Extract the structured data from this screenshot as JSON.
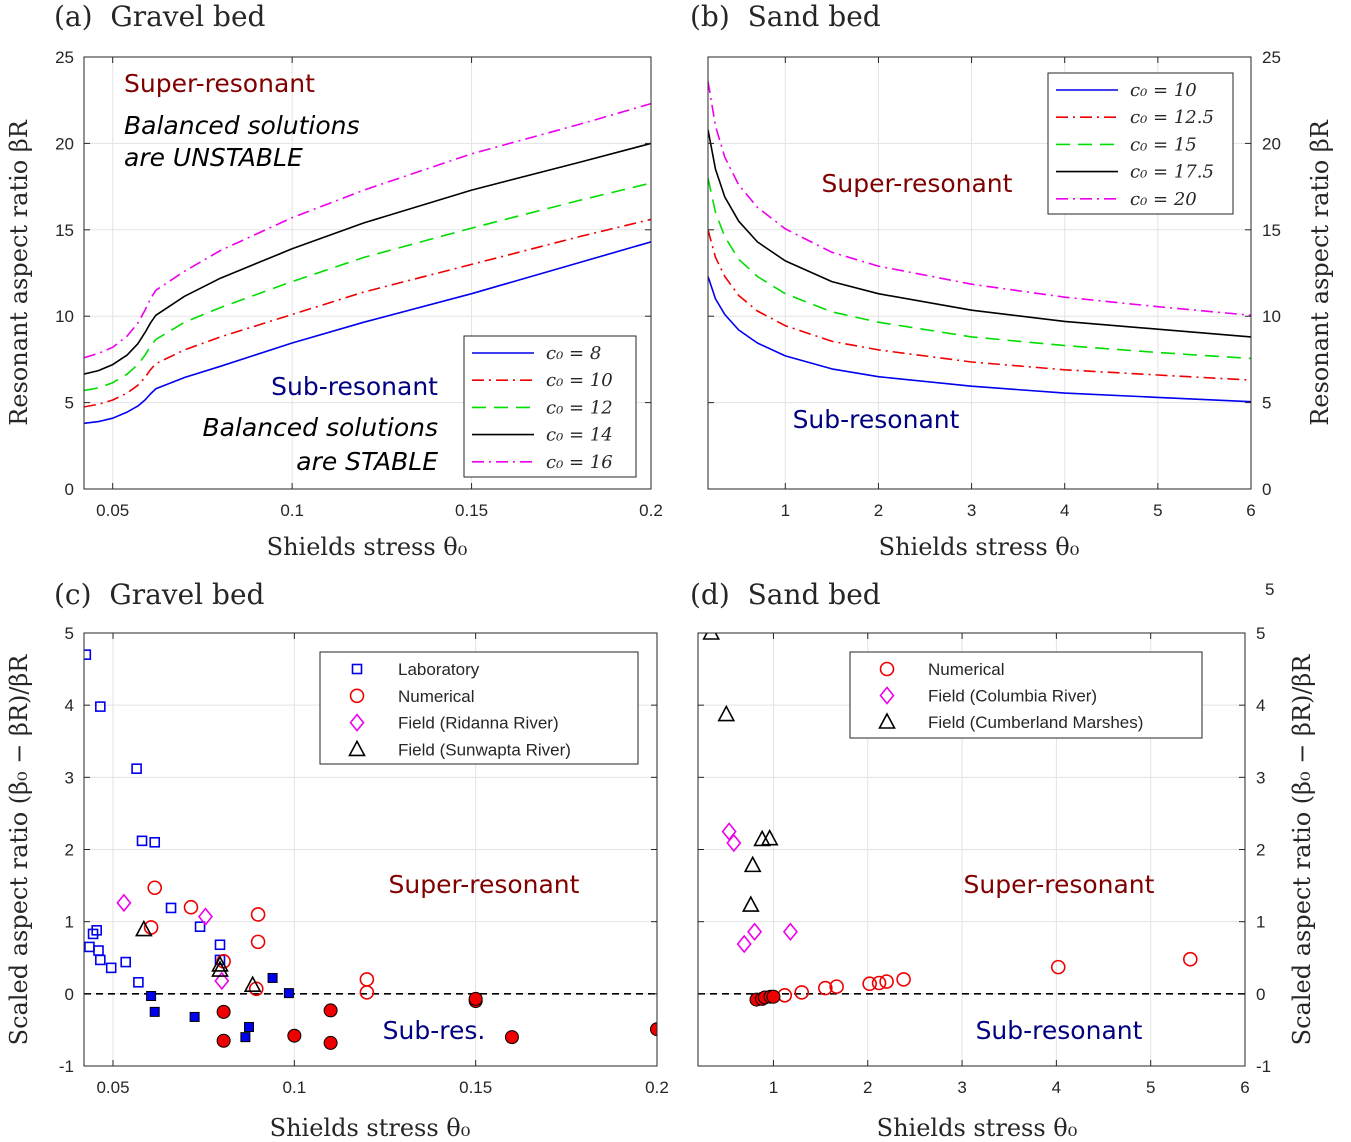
{
  "chart_data": [
    {
      "id": "a",
      "type": "line",
      "title": "(a)  Gravel bed",
      "xlabel": "Shields stress θ₀",
      "ylabel": "Resonant aspect ratio βR",
      "xlim": [
        0.042,
        0.2
      ],
      "ylim": [
        0,
        25
      ],
      "xticks": [
        0.05,
        0.1,
        0.15,
        0.2
      ],
      "xtick_labels": [
        "0.05",
        "0.1",
        "0.15",
        "0.2"
      ],
      "yticks": [
        0,
        5,
        10,
        15,
        20,
        25
      ],
      "ytick_labels": [
        "0",
        "5",
        "10",
        "15",
        "20",
        "25"
      ],
      "grid": true,
      "legend_position": "bottom-right",
      "series": [
        {
          "name": "c₀ = 8",
          "color": "#0000ee",
          "dash": "solid",
          "x": [
            0.042,
            0.046,
            0.05,
            0.054,
            0.057,
            0.059,
            0.0605,
            0.062,
            0.07,
            0.08,
            0.1,
            0.12,
            0.15,
            0.18,
            0.2
          ],
          "y": [
            3.8,
            3.9,
            4.1,
            4.45,
            4.8,
            5.15,
            5.5,
            5.8,
            6.45,
            7.1,
            8.45,
            9.65,
            11.3,
            13.1,
            14.3
          ]
        },
        {
          "name": "c₀ = 10",
          "color": "#ee0000",
          "dash": "dashdot",
          "x": [
            0.042,
            0.046,
            0.05,
            0.054,
            0.057,
            0.059,
            0.0605,
            0.062,
            0.07,
            0.08,
            0.1,
            0.12,
            0.15,
            0.18,
            0.2
          ],
          "y": [
            4.75,
            4.9,
            5.15,
            5.55,
            6.0,
            6.45,
            6.9,
            7.25,
            8.05,
            8.8,
            10.1,
            11.4,
            13.0,
            14.6,
            15.6
          ]
        },
        {
          "name": "c₀ = 12",
          "color": "#00dd00",
          "dash": "dash",
          "x": [
            0.042,
            0.046,
            0.05,
            0.054,
            0.057,
            0.059,
            0.0605,
            0.062,
            0.07,
            0.08,
            0.1,
            0.12,
            0.15,
            0.18,
            0.2
          ],
          "y": [
            5.7,
            5.85,
            6.15,
            6.65,
            7.2,
            7.75,
            8.25,
            8.65,
            9.65,
            10.5,
            12.0,
            13.4,
            15.1,
            16.7,
            17.7
          ]
        },
        {
          "name": "c₀ = 14",
          "color": "#000000",
          "dash": "solid",
          "x": [
            0.042,
            0.046,
            0.05,
            0.054,
            0.057,
            0.059,
            0.0605,
            0.062,
            0.07,
            0.08,
            0.1,
            0.12,
            0.15,
            0.18,
            0.2
          ],
          "y": [
            6.65,
            6.85,
            7.2,
            7.75,
            8.4,
            9.05,
            9.6,
            10.05,
            11.15,
            12.2,
            13.9,
            15.4,
            17.3,
            18.9,
            20.0
          ]
        },
        {
          "name": "c₀ = 16",
          "color": "#ee00ee",
          "dash": "dashdot",
          "x": [
            0.042,
            0.046,
            0.05,
            0.054,
            0.057,
            0.059,
            0.0605,
            0.062,
            0.07,
            0.08,
            0.1,
            0.12,
            0.15,
            0.18,
            0.2
          ],
          "y": [
            7.6,
            7.85,
            8.2,
            8.85,
            9.6,
            10.35,
            11.0,
            11.5,
            12.6,
            13.8,
            15.7,
            17.3,
            19.4,
            21.1,
            22.3
          ]
        }
      ],
      "annotations": [
        {
          "text": "Super-resonant",
          "color": "#800000",
          "italic": false
        },
        {
          "text": "Balanced solutions",
          "color": "#000000",
          "italic": true
        },
        {
          "text": "are UNSTABLE",
          "color": "#000000",
          "italic": true
        },
        {
          "text": "Sub-resonant",
          "color": "#000080",
          "italic": false
        },
        {
          "text": "Balanced solutions",
          "color": "#000000",
          "italic": true
        },
        {
          "text": "are STABLE",
          "color": "#000000",
          "italic": true
        }
      ]
    },
    {
      "id": "b",
      "type": "line",
      "title": "(b)  Sand bed",
      "xlabel": "Shields stress θ₀",
      "ylabel": "Resonant aspect ratio βR",
      "xlim": [
        0.17,
        6
      ],
      "ylim": [
        0,
        25
      ],
      "xticks": [
        1,
        2,
        3,
        4,
        5,
        6
      ],
      "xtick_labels": [
        "1",
        "2",
        "3",
        "4",
        "5",
        "6"
      ],
      "yticks": [
        0,
        5,
        10,
        15,
        20,
        25
      ],
      "ytick_labels": [
        "0",
        "5",
        "10",
        "15",
        "20",
        "25"
      ],
      "yaxis_side": "right",
      "grid": true,
      "legend_position": "top-right",
      "series": [
        {
          "name": "c₀ = 10",
          "color": "#0000ee",
          "dash": "solid",
          "x": [
            0.17,
            0.25,
            0.35,
            0.5,
            0.7,
            1.0,
            1.5,
            2,
            3,
            4,
            5,
            6
          ],
          "y": [
            12.3,
            11.0,
            10.1,
            9.2,
            8.45,
            7.7,
            6.95,
            6.5,
            5.95,
            5.55,
            5.3,
            5.05
          ]
        },
        {
          "name": "c₀ = 12.5",
          "color": "#ee0000",
          "dash": "dashdot",
          "x": [
            0.17,
            0.25,
            0.35,
            0.5,
            0.7,
            1.0,
            1.5,
            2,
            3,
            4,
            5,
            6
          ],
          "y": [
            15.0,
            13.4,
            12.3,
            11.2,
            10.3,
            9.45,
            8.55,
            8.05,
            7.35,
            6.9,
            6.6,
            6.3
          ]
        },
        {
          "name": "c₀ = 15",
          "color": "#00dd00",
          "dash": "dash",
          "x": [
            0.17,
            0.25,
            0.35,
            0.5,
            0.7,
            1.0,
            1.5,
            2,
            3,
            4,
            5,
            6
          ],
          "y": [
            18.0,
            16.0,
            14.6,
            13.3,
            12.3,
            11.3,
            10.25,
            9.65,
            8.8,
            8.3,
            7.9,
            7.55
          ]
        },
        {
          "name": "c₀ = 17.5",
          "color": "#000000",
          "dash": "solid",
          "x": [
            0.17,
            0.25,
            0.35,
            0.5,
            0.7,
            1.0,
            1.5,
            2,
            3,
            4,
            5,
            6
          ],
          "y": [
            20.8,
            18.5,
            16.9,
            15.5,
            14.3,
            13.2,
            12.0,
            11.3,
            10.35,
            9.7,
            9.25,
            8.8
          ]
        },
        {
          "name": "c₀ = 20",
          "color": "#ee00ee",
          "dash": "dashdot",
          "x": [
            0.17,
            0.25,
            0.35,
            0.5,
            0.7,
            1.0,
            1.5,
            2,
            3,
            4,
            5,
            6
          ],
          "y": [
            23.6,
            21.0,
            19.2,
            17.6,
            16.3,
            15.05,
            13.7,
            12.9,
            11.85,
            11.1,
            10.55,
            10.05
          ]
        }
      ],
      "annotations": [
        {
          "text": "Super-resonant",
          "color": "#800000",
          "italic": false
        },
        {
          "text": "Sub-resonant",
          "color": "#000080",
          "italic": false
        }
      ]
    },
    {
      "id": "c",
      "type": "scatter",
      "title": "(c)  Gravel bed",
      "xlabel": "Shields stress θ₀",
      "ylabel": "Scaled aspect ratio (β₀ − βR)/βR",
      "xlim": [
        0.042,
        0.2
      ],
      "ylim": [
        -1,
        5
      ],
      "xticks": [
        0.05,
        0.1,
        0.15,
        0.2
      ],
      "xtick_labels": [
        "0.05",
        "0.1",
        "0.15",
        "0.2"
      ],
      "yticks": [
        -1,
        0,
        1,
        2,
        3,
        4,
        5
      ],
      "ytick_labels": [
        "-1",
        "0",
        "1",
        "2",
        "3",
        "4",
        "5"
      ],
      "grid": true,
      "legend_position": "top-right",
      "reference_line_y": 0,
      "series": [
        {
          "name": "Laboratory",
          "marker": "square",
          "color": "#0000ee",
          "filled": false,
          "x": [
            0.0425,
            0.0465,
            0.0565,
            0.058,
            0.0615,
            0.066,
            0.074,
            0.0795,
            0.0795,
            0.0455,
            0.0445,
            0.0435,
            0.046,
            0.0465,
            0.0495,
            0.0535,
            0.057
          ],
          "y": [
            4.7,
            3.98,
            3.12,
            2.12,
            2.1,
            1.19,
            0.93,
            0.68,
            0.47,
            0.88,
            0.83,
            0.65,
            0.6,
            0.47,
            0.36,
            0.44,
            0.16
          ]
        },
        {
          "name": "Laboratory (filled)",
          "marker": "square",
          "color": "#0000ee",
          "filled": true,
          "x": [
            0.0605,
            0.0615,
            0.0725,
            0.0865,
            0.0875,
            0.094,
            0.0985
          ],
          "y": [
            -0.03,
            -0.25,
            -0.32,
            -0.6,
            -0.46,
            0.22,
            0.01
          ]
        },
        {
          "name": "Numerical",
          "marker": "circle",
          "color": "#ee0000",
          "filled": false,
          "x": [
            0.0615,
            0.0605,
            0.0715,
            0.09,
            0.09,
            0.0805,
            0.0895,
            0.12,
            0.12
          ],
          "y": [
            1.47,
            0.92,
            1.2,
            1.1,
            0.72,
            0.45,
            0.07,
            0.2,
            0.02
          ]
        },
        {
          "name": "Numerical (filled)",
          "marker": "circle",
          "color": "#ee0000",
          "filled": true,
          "x": [
            0.0805,
            0.0805,
            0.1,
            0.11,
            0.11,
            0.15,
            0.15,
            0.16,
            0.2
          ],
          "y": [
            -0.25,
            -0.65,
            -0.58,
            -0.68,
            -0.23,
            -0.1,
            -0.07,
            -0.6,
            -0.49
          ]
        },
        {
          "name": "Field (Ridanna River)",
          "marker": "diamond",
          "color": "#ee00ee",
          "filled": false,
          "x": [
            0.053,
            0.0755,
            0.08
          ],
          "y": [
            1.26,
            1.07,
            0.18
          ]
        },
        {
          "name": "Field (Sunwapta River)",
          "marker": "triangle",
          "color": "#000000",
          "filled": false,
          "x": [
            0.0585,
            0.0795,
            0.0795,
            0.0885
          ],
          "y": [
            0.89,
            0.4,
            0.33,
            0.12
          ]
        }
      ],
      "legend_entries": [
        "Laboratory",
        "Numerical",
        "Field (Ridanna River)",
        "Field (Sunwapta River)"
      ],
      "annotations": [
        {
          "text": "Super-resonant",
          "color": "#800000"
        },
        {
          "text": "Sub-res.",
          "color": "#000080"
        }
      ]
    },
    {
      "id": "d",
      "type": "scatter",
      "title": "(d)  Sand bed",
      "xlabel": "Shields stress θ₀",
      "ylabel": "Scaled aspect ratio (β₀ − βR)/βR",
      "xlim": [
        0.2,
        6
      ],
      "ylim": [
        -1,
        5
      ],
      "xticks": [
        1,
        2,
        3,
        4,
        5,
        6
      ],
      "xtick_labels": [
        "1",
        "2",
        "3",
        "4",
        "5",
        "6"
      ],
      "yticks": [
        -1,
        0,
        1,
        2,
        3,
        4,
        5
      ],
      "ytick_labels": [
        "-1",
        "0",
        "1",
        "2",
        "3",
        "4",
        "5"
      ],
      "extra_tick_label": "5",
      "yaxis_side": "right",
      "grid": true,
      "legend_position": "top-right",
      "reference_line_y": 0,
      "series": [
        {
          "name": "Numerical",
          "marker": "circle",
          "color": "#ee0000",
          "filled": false,
          "x": [
            1.12,
            1.3,
            1.55,
            1.67,
            2.02,
            2.12,
            2.2,
            2.38,
            4.02,
            5.42
          ],
          "y": [
            -0.02,
            0.02,
            0.08,
            0.1,
            0.14,
            0.15,
            0.17,
            0.2,
            0.37,
            0.48
          ]
        },
        {
          "name": "Numerical (filled)",
          "marker": "circle",
          "color": "#ee0000",
          "filled": true,
          "x": [
            0.82,
            0.88,
            0.91,
            0.97,
            1.0
          ],
          "y": [
            -0.08,
            -0.07,
            -0.05,
            -0.04,
            -0.04
          ]
        },
        {
          "name": "Field (Columbia River)",
          "marker": "diamond",
          "color": "#ee00ee",
          "filled": false,
          "x": [
            0.53,
            0.58,
            0.69,
            0.8,
            1.18
          ],
          "y": [
            2.25,
            2.09,
            0.69,
            0.86,
            0.86
          ]
        },
        {
          "name": "Field (Cumberland Marshes)",
          "marker": "triangle",
          "color": "#000000",
          "filled": false,
          "x": [
            0.34,
            0.5,
            0.88,
            0.96,
            0.78,
            0.76
          ],
          "y": [
            5.0,
            3.87,
            2.14,
            2.15,
            1.78,
            1.23
          ]
        }
      ],
      "legend_entries": [
        "Numerical",
        "Field (Columbia River)",
        "Field (Cumberland Marshes)"
      ],
      "annotations": [
        {
          "text": "Super-resonant",
          "color": "#800000"
        },
        {
          "text": "Sub-resonant",
          "color": "#000080"
        }
      ]
    }
  ]
}
